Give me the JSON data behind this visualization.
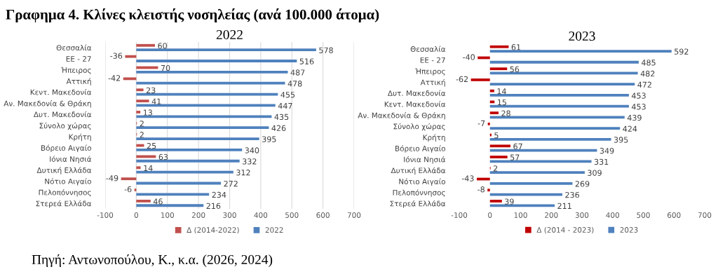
{
  "chart_data": [
    {
      "type": "bar",
      "orientation": "horizontal",
      "title": "2022",
      "annotations": [
        "Γραφημα 4. Κλίνες κλειστής νοσηλείας (ανά 100.000 άτομα)",
        "Πηγή: Αντωνοπούλου, Κ., κ.α. (2026, 2024)"
      ],
      "categories": [
        "Θεσσαλία",
        "ΕΕ - 27",
        "Ήπειρος",
        "Αττική",
        "Κεντ. Μακεδονία",
        "Αν. Μακεδονία & Θράκη",
        "Δυτ. Μακεδονία",
        "Σύνολο χώρας",
        "Κρήτη",
        "Βόρειο Αιγαίο",
        "Ιόνια Νησιά",
        "Δυτική Ελλάδα",
        "Νότιο Αιγαίο",
        "Πελοπόννησος",
        "Στερεά Ελλάδα"
      ],
      "series": [
        {
          "name": "Δ (2014-2022)",
          "color": "#c0504d",
          "values": [
            60,
            -36,
            70,
            -42,
            23,
            41,
            13,
            2,
            2,
            25,
            63,
            14,
            -49,
            -6,
            46
          ]
        },
        {
          "name": "2022",
          "color": "#4f81bd",
          "values": [
            578,
            516,
            487,
            478,
            455,
            447,
            435,
            426,
            395,
            340,
            332,
            312,
            272,
            234,
            216
          ]
        }
      ],
      "xlim": [
        -100,
        700
      ],
      "xticks": [
        -100,
        0,
        100,
        200,
        300,
        400,
        500,
        600,
        700
      ],
      "grid": "x",
      "legend": "bottom",
      "data_labels": true
    },
    {
      "type": "bar",
      "orientation": "horizontal",
      "title": "2023",
      "categories": [
        "Θεσσαλία",
        "ΕΕ - 27",
        "Ήπειρος",
        "Αττική",
        "Δυτ. Μακεδονία",
        "Κεντ. Μακεδονία",
        "Αν. Μακεδονία & Θράκη",
        "Σύνολο χώρας",
        "Κρήτη",
        "Βόρειο Αιγαίο",
        "Ιόνια Νησιά",
        "Δυτική Ελλάδα",
        "Νότιο Αιγαίο",
        "Πελοπόννησος",
        "Στερεά Ελλάδα"
      ],
      "series": [
        {
          "name": "Δ (2014 - 2023)",
          "color": "#c00000",
          "values": [
            61,
            -40,
            56,
            -62,
            14,
            15,
            28,
            -7,
            5,
            67,
            57,
            2,
            -43,
            -8,
            39
          ]
        },
        {
          "name": "2023",
          "color": "#4f81bd",
          "values": [
            592,
            485,
            482,
            472,
            453,
            453,
            439,
            424,
            395,
            349,
            331,
            309,
            269,
            236,
            211
          ]
        }
      ],
      "xlim": [
        -100,
        700
      ],
      "xticks": [
        -100,
        0,
        100,
        200,
        300,
        400,
        500,
        600,
        700
      ],
      "grid": false,
      "legend": "bottom",
      "data_labels": true
    }
  ]
}
